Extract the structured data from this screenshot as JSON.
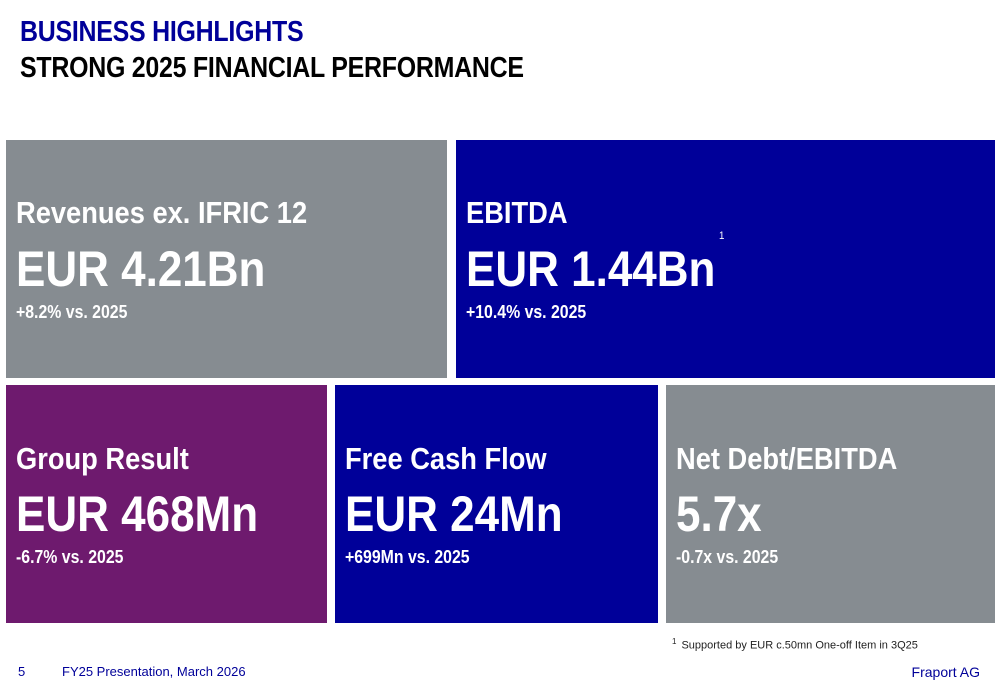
{
  "header": {
    "title": "BUSINESS HIGHLIGHTS",
    "subtitle": "STRONG 2025 FINANCIAL PERFORMANCE"
  },
  "colors": {
    "gray": "#868c91",
    "blue": "#000099",
    "purple": "#6e1a6e"
  },
  "tiles": [
    {
      "label": "Revenues ex. IFRIC 12",
      "value": "EUR 4.21Bn",
      "change": "+8.2% vs. 2025"
    },
    {
      "label": "EBITDA",
      "value": "EUR 1.44Bn",
      "footnote_ref": "1",
      "change": "+10.4% vs. 2025"
    },
    {
      "label": "Group Result",
      "value": "EUR 468Mn",
      "change": "-6.7% vs. 2025"
    },
    {
      "label": "Free Cash Flow",
      "value": "EUR 24Mn",
      "change": "+699Mn vs. 2025"
    },
    {
      "label": "Net Debt/EBITDA",
      "value": "5.7x",
      "change": "-0.7x vs. 2025"
    }
  ],
  "footnote": {
    "marker": "1",
    "text": "Supported by EUR c.50mn One-off Item in 3Q25"
  },
  "footer": {
    "page": "5",
    "presentation": "FY25 Presentation, March 2026",
    "company": "Fraport AG"
  }
}
